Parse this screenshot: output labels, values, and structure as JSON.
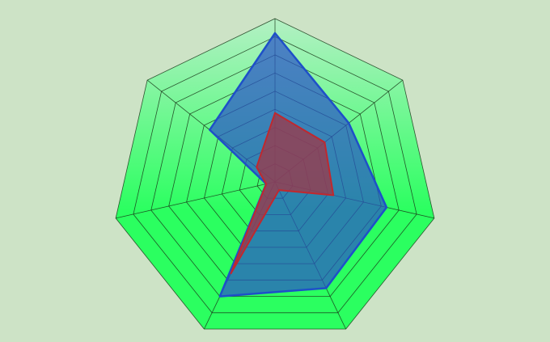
{
  "colors": {
    "background": "#cde3c6",
    "fill_top": "#b4f0c4",
    "fill_bottom": "#2bff60",
    "grid": "#1a3a1a",
    "series_blue_fill": "#2a55c8",
    "series_blue_stroke": "#1e50c8",
    "series_red_fill": "#9b3a4a",
    "series_red_stroke": "#c0282e"
  },
  "chart_data": {
    "type": "radar",
    "title": "",
    "axes_count": 7,
    "rings": 9,
    "r_max": 9,
    "axis_labels": [],
    "legend": "none",
    "series": [
      {
        "values": [
          8.2,
          5.2,
          6.3,
          6.5,
          7.0,
          0.5,
          4.6
        ],
        "color": "blue"
      },
      {
        "values": [
          3.8,
          3.5,
          3.3,
          0.5,
          5.6,
          0.5,
          1.3
        ],
        "color": "red"
      }
    ]
  }
}
